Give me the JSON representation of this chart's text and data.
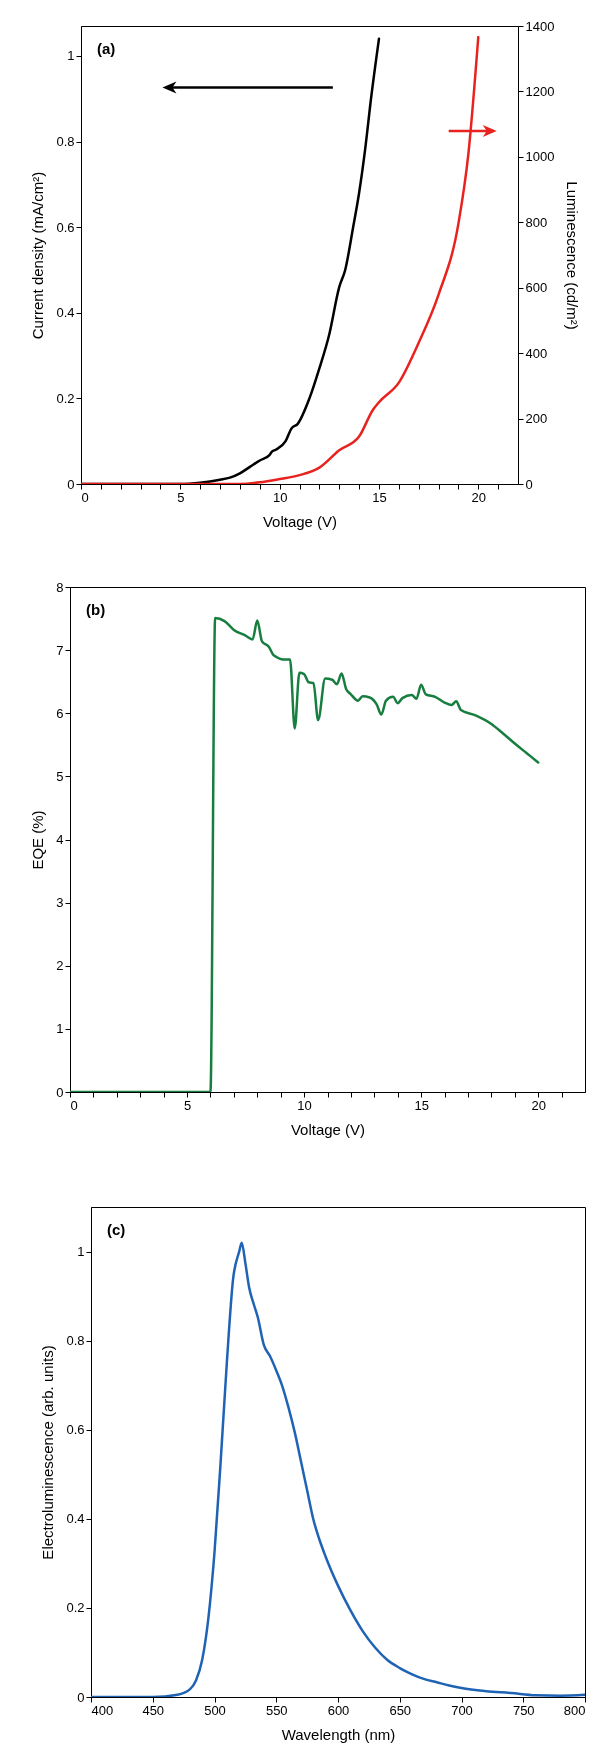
{
  "chart_data": [
    {
      "type": "line",
      "xlabel": "Voltage (V)",
      "ylabel": "Current density (mA/cm²)",
      "y2label": "Luminescence (cd/m²)",
      "annotations": [
        "(a)"
      ],
      "xlim": [
        0,
        22
      ],
      "xticks": [
        0,
        {
          "value": 1,
          "label": null
        },
        {
          "value": 2,
          "label": null
        },
        {
          "value": 3,
          "label": null
        },
        {
          "value": 4,
          "label": null
        },
        5,
        {
          "value": 6,
          "label": null
        },
        {
          "value": 7,
          "label": null
        },
        {
          "value": 8,
          "label": null
        },
        {
          "value": 9,
          "label": null
        },
        10,
        {
          "value": 11,
          "label": null
        },
        {
          "value": 12,
          "label": null
        },
        {
          "value": 13,
          "label": null
        },
        {
          "value": 14,
          "label": null
        },
        15,
        {
          "value": 16,
          "label": null
        },
        {
          "value": 17,
          "label": null
        },
        {
          "value": 18,
          "label": null
        },
        {
          "value": 19,
          "label": null
        },
        20,
        {
          "value": 21,
          "label": null
        }
      ],
      "ylim": [
        0,
        1.07
      ],
      "yticks": [
        0,
        0.2,
        0.4,
        0.6,
        0.8,
        1
      ],
      "y2lim": [
        0,
        1400
      ],
      "y2ticks": [
        0,
        200,
        400,
        600,
        800,
        1000,
        1200,
        1400
      ],
      "series": [
        {
          "color": "#000000",
          "x": [
            0,
            5,
            6,
            7,
            7.5,
            8,
            8.5,
            9,
            9.5,
            9.6,
            9.8,
            10.3,
            10.6,
            10.9,
            11.5,
            12,
            12.5,
            13,
            13.3,
            13.7,
            14,
            14.3,
            14.6,
            15
          ],
          "values": [
            0,
            0,
            0.003,
            0.01,
            0.015,
            0.025,
            0.04,
            0.055,
            0.068,
            0.075,
            0.08,
            0.1,
            0.13,
            0.14,
            0.2,
            0.27,
            0.35,
            0.46,
            0.5,
            0.6,
            0.68,
            0.78,
            0.9,
            1.04
          ]
        },
        {
          "color": "#e8231f",
          "axis": "y2",
          "x": [
            0,
            8,
            9,
            10,
            11,
            12,
            13,
            14,
            14.7,
            15,
            16,
            17,
            18,
            19,
            19.5,
            20
          ],
          "values": [
            0,
            0,
            5,
            15,
            27,
            50,
            103,
            145,
            227,
            250,
            310,
            432,
            579,
            796,
            1008,
            1366
          ]
        }
      ]
    },
    {
      "type": "line",
      "xlabel": "Voltage (V)",
      "ylabel": "EQE (%)",
      "annotations": [
        "(b)"
      ],
      "xlim": [
        0,
        22
      ],
      "xticks": [
        0,
        {
          "value": 1,
          "label": null
        },
        {
          "value": 2,
          "label": null
        },
        {
          "value": 3,
          "label": null
        },
        {
          "value": 4,
          "label": null
        },
        5,
        {
          "value": 6,
          "label": null
        },
        {
          "value": 7,
          "label": null
        },
        {
          "value": 8,
          "label": null
        },
        {
          "value": 9,
          "label": null
        },
        10,
        {
          "value": 11,
          "label": null
        },
        {
          "value": 12,
          "label": null
        },
        {
          "value": 13,
          "label": null
        },
        {
          "value": 14,
          "label": null
        },
        15,
        {
          "value": 16,
          "label": null
        },
        {
          "value": 17,
          "label": null
        },
        {
          "value": 18,
          "label": null
        },
        {
          "value": 19,
          "label": null
        },
        20,
        {
          "value": 21,
          "label": null
        }
      ],
      "ylim": [
        0,
        8
      ],
      "yticks": [
        0,
        1,
        2,
        3,
        4,
        5,
        6,
        7,
        8
      ],
      "series": [
        {
          "color": "#177e3f",
          "x": [
            0,
            6.0,
            6.2,
            6.6,
            7.0,
            7.5,
            7.8,
            8.0,
            8.2,
            8.5,
            8.7,
            9.2,
            9.4,
            9.6,
            9.8,
            10.0,
            10.2,
            10.4,
            10.6,
            10.9,
            11.2,
            11.4,
            11.6,
            11.8,
            12.0,
            12.3,
            12.5,
            12.8,
            13.1,
            13.3,
            13.5,
            13.8,
            14.0,
            14.2,
            14.6,
            14.8,
            15.0,
            15.2,
            15.6,
            16.0,
            16.3,
            16.5,
            16.7,
            17.3,
            18.0,
            18.5,
            19.0,
            19.5,
            20.0
          ],
          "values": [
            0,
            0,
            7.51,
            7.46,
            7.32,
            7.23,
            7.17,
            7.47,
            7.14,
            7.05,
            6.92,
            6.85,
            6.85,
            5.76,
            6.64,
            6.62,
            6.49,
            6.48,
            5.89,
            6.55,
            6.53,
            6.46,
            6.63,
            6.38,
            6.3,
            6.2,
            6.27,
            6.25,
            6.14,
            5.98,
            6.2,
            6.26,
            6.16,
            6.24,
            6.29,
            6.23,
            6.45,
            6.3,
            6.26,
            6.17,
            6.13,
            6.19,
            6.05,
            5.97,
            5.83,
            5.68,
            5.52,
            5.37,
            5.22
          ]
        }
      ]
    },
    {
      "type": "line",
      "xlabel": "Wavelength (nm)",
      "ylabel": "Electroluminescence (arb. units)",
      "annotations": [
        "(c)"
      ],
      "xlim": [
        400,
        800
      ],
      "xticks": [
        400,
        450,
        500,
        550,
        600,
        650,
        700,
        750,
        800
      ],
      "ylim": [
        0,
        1.1
      ],
      "yticks": [
        0,
        0.2,
        0.4,
        0.6,
        0.8,
        1
      ],
      "series": [
        {
          "color": "#1f63b5",
          "x": [
            400,
            450,
            470,
            480,
            485,
            490,
            495,
            500,
            505,
            510,
            515,
            520,
            522,
            525,
            528,
            532,
            535,
            540,
            545,
            550,
            555,
            560,
            565,
            570,
            575,
            580,
            585,
            590,
            600,
            610,
            620,
            630,
            640,
            650,
            660,
            670,
            680,
            690,
            700,
            720,
            740,
            760,
            780,
            800
          ],
          "values": [
            0,
            0,
            0.005,
            0.017,
            0.037,
            0.083,
            0.176,
            0.325,
            0.529,
            0.751,
            0.937,
            1.0,
            1.02,
            0.974,
            0.92,
            0.88,
            0.853,
            0.79,
            0.765,
            0.733,
            0.697,
            0.649,
            0.594,
            0.529,
            0.464,
            0.399,
            0.353,
            0.315,
            0.25,
            0.195,
            0.148,
            0.111,
            0.083,
            0.065,
            0.051,
            0.04,
            0.033,
            0.026,
            0.02,
            0.013,
            0.009,
            0.004,
            0.003,
            0.005
          ]
        }
      ]
    }
  ]
}
